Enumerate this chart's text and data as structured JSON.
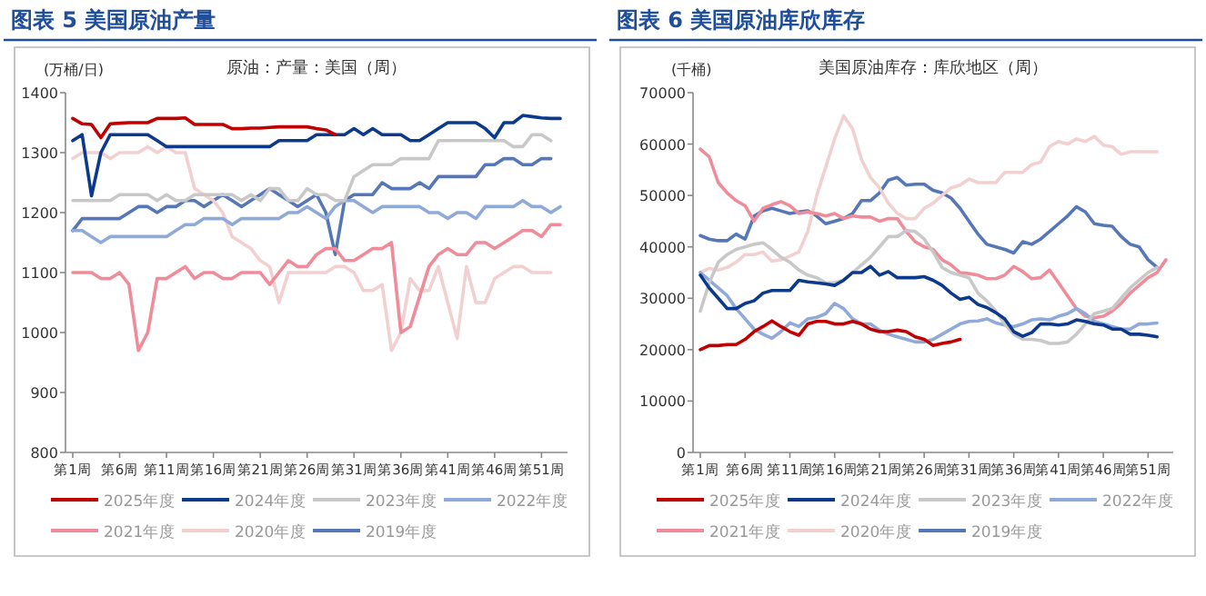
{
  "chart_data": [
    {
      "type": "line",
      "title": "图表 5 美国原油产量",
      "subtitle": "原油：产量：美国（周）",
      "ylabel": "(万桶/日)",
      "categories": [
        "第1周",
        null,
        null,
        null,
        null,
        "第6周",
        null,
        null,
        null,
        null,
        "第11周",
        null,
        null,
        null,
        null,
        "第16周",
        null,
        null,
        null,
        null,
        "第21周",
        null,
        null,
        null,
        null,
        "第26周",
        null,
        null,
        null,
        null,
        "第31周",
        null,
        null,
        null,
        null,
        "第36周",
        null,
        null,
        null,
        null,
        "第41周",
        null,
        null,
        null,
        null,
        "第46周",
        null,
        null,
        null,
        null,
        "第51周",
        null,
        null
      ],
      "ylim": [
        800,
        1400
      ],
      "yticks": [
        800,
        900,
        1000,
        1100,
        1200,
        1300,
        1400
      ],
      "legend": "bottom",
      "series": [
        {
          "name": "2025年度",
          "color": "#c00000",
          "values": [
            1357,
            1348,
            1347,
            1325,
            1348,
            1349,
            1350,
            1350,
            1350,
            1357,
            1357,
            1357,
            1358,
            1347,
            1347,
            1347,
            1347,
            1340,
            1340,
            1341,
            1341,
            1342,
            1343,
            1343,
            1343,
            1343,
            1340,
            1338,
            1330,
            null,
            null,
            null,
            null,
            null,
            null,
            null,
            null,
            null,
            null,
            null,
            null,
            null,
            null,
            null,
            null,
            null,
            null,
            null,
            null,
            null,
            null,
            null,
            null
          ]
        },
        {
          "name": "2024年度",
          "color": "#0b3a8c",
          "values": [
            1320,
            1330,
            1228,
            1300,
            1330,
            1330,
            1330,
            1330,
            1330,
            1320,
            1310,
            1310,
            1310,
            1310,
            1310,
            1310,
            1310,
            1310,
            1310,
            1310,
            1310,
            1310,
            1320,
            1320,
            1320,
            1320,
            1330,
            1330,
            1330,
            1330,
            1340,
            1330,
            1340,
            1330,
            1330,
            1330,
            1320,
            1320,
            1330,
            1340,
            1350,
            1350,
            1350,
            1350,
            1340,
            1325,
            1350,
            1350,
            1362,
            1360,
            1358,
            1357,
            1357
          ]
        },
        {
          "name": "2023年度",
          "color": "#c8c8c8",
          "values": [
            1220,
            1220,
            1220,
            1220,
            1220,
            1230,
            1230,
            1230,
            1230,
            1220,
            1230,
            1220,
            1220,
            1230,
            1230,
            1230,
            1230,
            1230,
            1220,
            1230,
            1220,
            1240,
            1240,
            1220,
            1220,
            1240,
            1230,
            1230,
            1220,
            1220,
            1260,
            1270,
            1280,
            1280,
            1280,
            1290,
            1290,
            1290,
            1290,
            1320,
            1320,
            1320,
            1320,
            1320,
            1320,
            1320,
            1320,
            1310,
            1310,
            1330,
            1330,
            1320,
            null
          ]
        },
        {
          "name": "2022年度",
          "color": "#8fa9d8",
          "values": [
            1170,
            1170,
            1160,
            1150,
            1160,
            1160,
            1160,
            1160,
            1160,
            1160,
            1160,
            1170,
            1180,
            1180,
            1190,
            1190,
            1190,
            1180,
            1190,
            1190,
            1190,
            1190,
            1190,
            1200,
            1200,
            1210,
            1200,
            1190,
            1210,
            1220,
            1220,
            1210,
            1200,
            1210,
            1210,
            1210,
            1210,
            1210,
            1200,
            1200,
            1190,
            1200,
            1200,
            1190,
            1210,
            1210,
            1210,
            1210,
            1220,
            1210,
            1210,
            1200,
            1210
          ]
        },
        {
          "name": "2021年度",
          "color": "#f08c99",
          "values": [
            1100,
            1100,
            1100,
            1090,
            1090,
            1100,
            1080,
            970,
            1000,
            1090,
            1090,
            1100,
            1110,
            1090,
            1100,
            1100,
            1090,
            1090,
            1100,
            1100,
            1100,
            1080,
            1100,
            1120,
            1110,
            1110,
            1130,
            1140,
            1140,
            1120,
            1120,
            1130,
            1140,
            1140,
            1150,
            1000,
            1010,
            1060,
            1110,
            1130,
            1140,
            1130,
            1130,
            1150,
            1150,
            1140,
            1150,
            1160,
            1170,
            1170,
            1160,
            1180,
            1180
          ]
        },
        {
          "name": "2020年度",
          "color": "#f2d0d0",
          "values": [
            1290,
            1300,
            1300,
            1300,
            1290,
            1300,
            1300,
            1300,
            1310,
            1300,
            1310,
            1300,
            1300,
            1240,
            1230,
            1220,
            1200,
            1160,
            1150,
            1140,
            1120,
            1110,
            1050,
            1100,
            1100,
            1100,
            1100,
            1100,
            1110,
            1110,
            1100,
            1070,
            1070,
            1080,
            970,
            1000,
            1090,
            1070,
            1070,
            1110,
            1050,
            990,
            1110,
            1050,
            1050,
            1090,
            1100,
            1110,
            1110,
            1100,
            1100,
            1100,
            null
          ]
        },
        {
          "name": "2019年度",
          "color": "#5577b8",
          "values": [
            1170,
            1190,
            1190,
            1190,
            1190,
            1190,
            1200,
            1210,
            1210,
            1200,
            1210,
            1210,
            1220,
            1220,
            1210,
            1220,
            1230,
            1220,
            1210,
            1220,
            1230,
            1240,
            1230,
            1220,
            1210,
            1220,
            1230,
            1200,
            1130,
            1220,
            1230,
            1230,
            1230,
            1250,
            1240,
            1240,
            1240,
            1250,
            1240,
            1260,
            1260,
            1260,
            1260,
            1260,
            1280,
            1280,
            1290,
            1290,
            1280,
            1280,
            1290,
            1290,
            null
          ]
        }
      ]
    },
    {
      "type": "line",
      "title": "图表 6 美国原油库欣库存",
      "subtitle": "美国原油库存：库欣地区（周）",
      "ylabel": "(千桶)",
      "categories": [
        "第1周",
        null,
        null,
        null,
        null,
        "第6周",
        null,
        null,
        null,
        null,
        "第11周",
        null,
        null,
        null,
        null,
        "第16周",
        null,
        null,
        null,
        null,
        "第21周",
        null,
        null,
        null,
        null,
        "第26周",
        null,
        null,
        null,
        null,
        "第31周",
        null,
        null,
        null,
        null,
        "第36周",
        null,
        null,
        null,
        null,
        "第41周",
        null,
        null,
        null,
        null,
        "第46周",
        null,
        null,
        null,
        null,
        "第51周",
        null,
        null
      ],
      "ylim": [
        0,
        70000
      ],
      "yticks": [
        0,
        10000,
        20000,
        30000,
        40000,
        50000,
        60000,
        70000
      ],
      "legend": "bottom",
      "series": [
        {
          "name": "2025年度",
          "color": "#c00000",
          "values": [
            20000,
            20800,
            20800,
            21000,
            21000,
            22000,
            23500,
            24500,
            25600,
            24500,
            23500,
            22800,
            25000,
            25500,
            25500,
            25000,
            25000,
            25500,
            25000,
            24000,
            23500,
            23500,
            23800,
            23500,
            22500,
            22000,
            20800,
            21200,
            21500,
            22000,
            null,
            null,
            null,
            null,
            null,
            null,
            null,
            null,
            null,
            null,
            null,
            null,
            null,
            null,
            null,
            null,
            null,
            null,
            null,
            null,
            null,
            null,
            null
          ]
        },
        {
          "name": "2024年度",
          "color": "#0b3a8c",
          "values": [
            34500,
            32000,
            30000,
            28000,
            28000,
            29000,
            29500,
            31000,
            31500,
            31500,
            31500,
            33500,
            33200,
            33000,
            32800,
            32500,
            33500,
            35000,
            35000,
            36200,
            34500,
            35200,
            34000,
            34000,
            34000,
            34200,
            33500,
            32500,
            31000,
            29800,
            30200,
            28800,
            28200,
            27200,
            26000,
            23500,
            22600,
            23300,
            25000,
            25000,
            24800,
            25000,
            25800,
            25500,
            25000,
            24800,
            24000,
            24000,
            23000,
            23000,
            22800,
            22500,
            null
          ]
        },
        {
          "name": "2023年度",
          "color": "#c8c8c8",
          "values": [
            27500,
            33000,
            37000,
            38500,
            39500,
            40000,
            40500,
            40800,
            39500,
            38000,
            37000,
            35500,
            34500,
            34000,
            33000,
            33000,
            33500,
            35000,
            36500,
            38000,
            40000,
            42000,
            42000,
            43200,
            43000,
            41500,
            39000,
            36000,
            35000,
            34500,
            34000,
            31000,
            29500,
            27500,
            25000,
            23000,
            22000,
            22000,
            21800,
            21200,
            21200,
            21500,
            23000,
            25000,
            27000,
            27500,
            28000,
            30000,
            32000,
            33500,
            35000,
            36000,
            null
          ]
        },
        {
          "name": "2022年度",
          "color": "#8fa9d8",
          "values": [
            35000,
            33500,
            32000,
            30500,
            28000,
            26000,
            24000,
            23000,
            22200,
            23500,
            25200,
            24500,
            26000,
            26300,
            27000,
            29000,
            28000,
            26000,
            25000,
            25000,
            23800,
            23000,
            22500,
            22000,
            21500,
            21500,
            22000,
            23000,
            24000,
            25000,
            25500,
            25600,
            26000,
            25200,
            24800,
            24500,
            25000,
            25800,
            26000,
            25800,
            26500,
            27000,
            28000,
            27000,
            25500,
            25000,
            24500,
            24000,
            24000,
            25000,
            25000,
            25200,
            null
          ]
        },
        {
          "name": "2021年度",
          "color": "#f08c99",
          "values": [
            59000,
            57500,
            52500,
            50500,
            49000,
            48000,
            45000,
            47500,
            48200,
            48800,
            48000,
            46500,
            46800,
            46500,
            46000,
            46500,
            45500,
            46000,
            45800,
            45800,
            45000,
            45500,
            45500,
            43000,
            41000,
            40000,
            39500,
            37500,
            36500,
            35000,
            34800,
            34500,
            33800,
            33800,
            34500,
            36200,
            35200,
            33800,
            34000,
            35500,
            33000,
            30500,
            28000,
            26500,
            26200,
            26500,
            27500,
            29000,
            31000,
            32500,
            34000,
            35000,
            37500
          ]
        },
        {
          "name": "2020年度",
          "color": "#f2d0d0",
          "values": [
            35000,
            35800,
            35500,
            36000,
            37000,
            38500,
            38500,
            39000,
            37200,
            37500,
            38200,
            39000,
            43000,
            50000,
            55500,
            61000,
            65500,
            63000,
            57000,
            53500,
            51500,
            48500,
            46500,
            45500,
            45500,
            47500,
            48500,
            50000,
            51500,
            52000,
            53200,
            52500,
            52500,
            52500,
            54500,
            54500,
            54500,
            56000,
            56500,
            59500,
            60500,
            60000,
            61000,
            60500,
            61500,
            59800,
            59500,
            58000,
            58500,
            58500,
            58500,
            58500,
            null
          ]
        },
        {
          "name": "2019年度",
          "color": "#5577b8",
          "values": [
            42200,
            41500,
            41200,
            41200,
            42500,
            41500,
            46000,
            47000,
            47500,
            47000,
            46500,
            46800,
            47000,
            46000,
            44500,
            45000,
            45500,
            46500,
            49000,
            49000,
            50500,
            53000,
            53500,
            52000,
            52200,
            52200,
            51000,
            50500,
            49500,
            47500,
            45000,
            42500,
            40500,
            40000,
            39500,
            38800,
            41000,
            40500,
            41500,
            43000,
            44500,
            46000,
            47800,
            46800,
            44500,
            44200,
            44000,
            42000,
            40500,
            40000,
            37500,
            36000,
            null
          ]
        }
      ]
    }
  ]
}
